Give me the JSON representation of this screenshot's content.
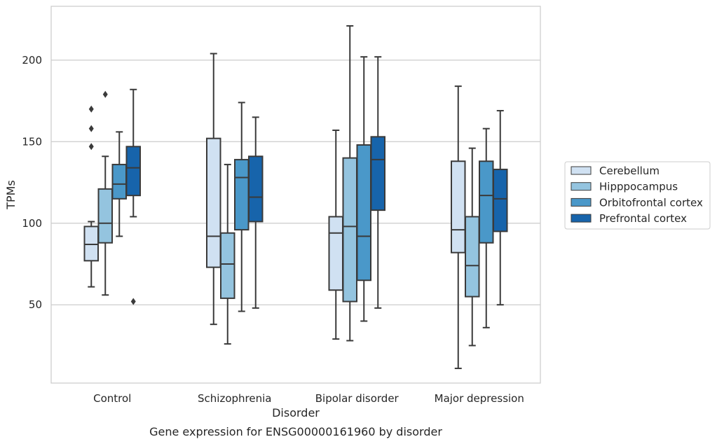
{
  "chart_data": {
    "type": "box",
    "title": "Gene expression for ENSG00000161960 by disorder",
    "xlabel": "Disorder",
    "ylabel": "TPMs",
    "ylim": [
      2,
      233
    ],
    "yticks": [
      50,
      100,
      150,
      200
    ],
    "grid": "horizontal",
    "legend_position": "right",
    "categories": [
      "Control",
      "Schizophrenia",
      "Bipolar disorder",
      "Major depression"
    ],
    "series": [
      {
        "name": "Cerebellum",
        "color": "#d0e1f2",
        "boxes": [
          {
            "whisker_low": 61,
            "q1": 77,
            "median": 87,
            "q3": 98,
            "whisker_high": 101,
            "outliers": [
              147,
              158,
              170
            ]
          },
          {
            "whisker_low": 38,
            "q1": 73,
            "median": 92,
            "q3": 152,
            "whisker_high": 204,
            "outliers": []
          },
          {
            "whisker_low": 29,
            "q1": 59,
            "median": 94,
            "q3": 104,
            "whisker_high": 157,
            "outliers": []
          },
          {
            "whisker_low": 11,
            "q1": 82,
            "median": 96,
            "q3": 138,
            "whisker_high": 184,
            "outliers": []
          }
        ]
      },
      {
        "name": "Hipppocampus",
        "color": "#94c4df",
        "boxes": [
          {
            "whisker_low": 56,
            "q1": 88,
            "median": 100,
            "q3": 121,
            "whisker_high": 141,
            "outliers": [
              179
            ]
          },
          {
            "whisker_low": 26,
            "q1": 54,
            "median": 75,
            "q3": 94,
            "whisker_high": 136,
            "outliers": []
          },
          {
            "whisker_low": 28,
            "q1": 52,
            "median": 98,
            "q3": 140,
            "whisker_high": 221,
            "outliers": []
          },
          {
            "whisker_low": 25,
            "q1": 55,
            "median": 74,
            "q3": 104,
            "whisker_high": 146,
            "outliers": []
          }
        ]
      },
      {
        "name": "Orbitofrontal cortex",
        "color": "#4a98c9",
        "boxes": [
          {
            "whisker_low": 92,
            "q1": 115,
            "median": 124,
            "q3": 136,
            "whisker_high": 156,
            "outliers": []
          },
          {
            "whisker_low": 46,
            "q1": 96,
            "median": 128,
            "q3": 139,
            "whisker_high": 174,
            "outliers": []
          },
          {
            "whisker_low": 40,
            "q1": 65,
            "median": 92,
            "q3": 148,
            "whisker_high": 202,
            "outliers": []
          },
          {
            "whisker_low": 36,
            "q1": 88,
            "median": 117,
            "q3": 138,
            "whisker_high": 158,
            "outliers": []
          }
        ]
      },
      {
        "name": "Prefrontal cortex",
        "color": "#1764ab",
        "boxes": [
          {
            "whisker_low": 104,
            "q1": 117,
            "median": 134,
            "q3": 147,
            "whisker_high": 182,
            "outliers": [
              52
            ]
          },
          {
            "whisker_low": 48,
            "q1": 101,
            "median": 116,
            "q3": 141,
            "whisker_high": 165,
            "outliers": []
          },
          {
            "whisker_low": 48,
            "q1": 108,
            "median": 139,
            "q3": 153,
            "whisker_high": 202,
            "outliers": []
          },
          {
            "whisker_low": 50,
            "q1": 95,
            "median": 115,
            "q3": 133,
            "whisker_high": 169,
            "outliers": []
          }
        ]
      }
    ]
  }
}
